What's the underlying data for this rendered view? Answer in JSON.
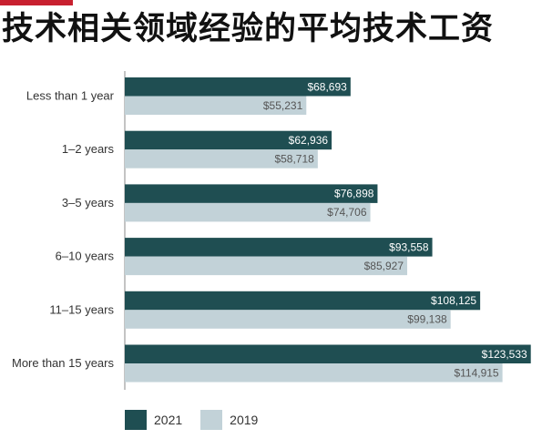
{
  "title": "技术相关领域经验的平均技术工资",
  "colors": {
    "accent": "#c8202f",
    "series_2021": "#1f4e52",
    "series_2019": "#c2d2d8"
  },
  "chart_data": {
    "type": "bar",
    "orientation": "horizontal",
    "categories": [
      "Less than 1 year",
      "1–2 years",
      "3–5 years",
      "6–10 years",
      "11–15 years",
      "More than 15 years"
    ],
    "series": [
      {
        "name": "2021",
        "values": [
          68693,
          62936,
          76898,
          93558,
          108125,
          123533
        ],
        "labels": [
          "$68,693",
          "$62,936",
          "$76,898",
          "$93,558",
          "$108,125",
          "$123,533"
        ]
      },
      {
        "name": "2019",
        "values": [
          55231,
          58718,
          74706,
          85927,
          99138,
          114915
        ],
        "labels": [
          "$55,231",
          "$58,718",
          "$74,706",
          "$85,927",
          "$99,138",
          "$114,915"
        ]
      }
    ],
    "xlim": [
      0,
      125000
    ],
    "grid": false,
    "legend_position": "bottom-left"
  }
}
